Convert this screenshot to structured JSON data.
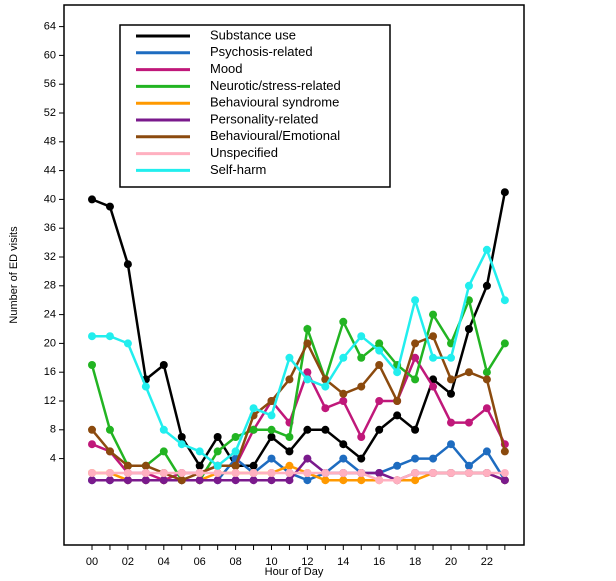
{
  "chart_data": {
    "type": "line",
    "x_label": "Hour of Day",
    "y_label": "Number of ED visits",
    "categories": [
      "00",
      null,
      "02",
      null,
      "04",
      null,
      "06",
      null,
      "08",
      null,
      "10",
      null,
      "12",
      null,
      "14",
      null,
      "16",
      null,
      "18",
      null,
      "20",
      null,
      "22",
      null
    ],
    "ylim": [
      -8,
      67
    ],
    "yticks": [
      4,
      8,
      12,
      16,
      20,
      24,
      28,
      32,
      36,
      40,
      44,
      48,
      52,
      56,
      60,
      64
    ],
    "legend": "upper left",
    "series": [
      {
        "name": "Substance use",
        "color": "#000000",
        "values": [
          40,
          39,
          31,
          15,
          17,
          7,
          3,
          7,
          3,
          3,
          7,
          5,
          8,
          8,
          6,
          4,
          8,
          10,
          8,
          15,
          13,
          22,
          28,
          41
        ]
      },
      {
        "name": "Psychosis-related",
        "color": "#1e6cc0",
        "values": [
          1,
          1,
          1,
          1,
          1,
          1,
          1,
          1,
          4,
          2,
          4,
          2,
          1,
          2,
          4,
          2,
          2,
          3,
          4,
          4,
          6,
          3,
          5,
          1
        ]
      },
      {
        "name": "Mood",
        "color": "#c0187a",
        "values": [
          6,
          5,
          2,
          2,
          1,
          2,
          2,
          3,
          3,
          8,
          12,
          9,
          16,
          11,
          12,
          7,
          12,
          12,
          18,
          14,
          9,
          9,
          11,
          6
        ]
      },
      {
        "name": "Neurotic/stress-related",
        "color": "#22b422",
        "values": [
          17,
          8,
          3,
          3,
          5,
          1,
          1,
          5,
          7,
          8,
          8,
          7,
          22,
          15,
          23,
          18,
          20,
          17,
          15,
          24,
          20,
          26,
          16,
          20
        ]
      },
      {
        "name": "Behavioural syndrome",
        "color": "#ff9900",
        "values": [
          2,
          2,
          1,
          1,
          1,
          1,
          1,
          2,
          2,
          2,
          2,
          3,
          2,
          1,
          1,
          1,
          1,
          1,
          1,
          2,
          2,
          2,
          2,
          1
        ]
      },
      {
        "name": "Personality-related",
        "color": "#7a1a8c",
        "values": [
          1,
          1,
          1,
          1,
          1,
          1,
          1,
          1,
          1,
          1,
          1,
          1,
          4,
          2,
          2,
          2,
          2,
          1,
          2,
          2,
          2,
          2,
          2,
          1
        ]
      },
      {
        "name": "Behavioural/Emotional",
        "color": "#8b4a0e",
        "values": [
          8,
          5,
          3,
          3,
          2,
          1,
          2,
          3,
          3,
          10,
          12,
          15,
          20,
          15,
          13,
          14,
          17,
          12,
          20,
          21,
          15,
          16,
          15,
          5
        ]
      },
      {
        "name": "Unspecified",
        "color": "#ffb0c0",
        "values": [
          2,
          2,
          2,
          2,
          2,
          2,
          2,
          2,
          2,
          2,
          2,
          2,
          2,
          2,
          2,
          2,
          1,
          1,
          2,
          2,
          2,
          2,
          2,
          2
        ]
      },
      {
        "name": "Self-harm",
        "color": "#22eeee",
        "values": [
          21,
          21,
          20,
          14,
          8,
          6,
          5,
          3,
          5,
          11,
          10,
          18,
          15,
          14,
          18,
          21,
          19,
          16,
          26,
          18,
          18,
          28,
          33,
          26
        ]
      }
    ]
  }
}
